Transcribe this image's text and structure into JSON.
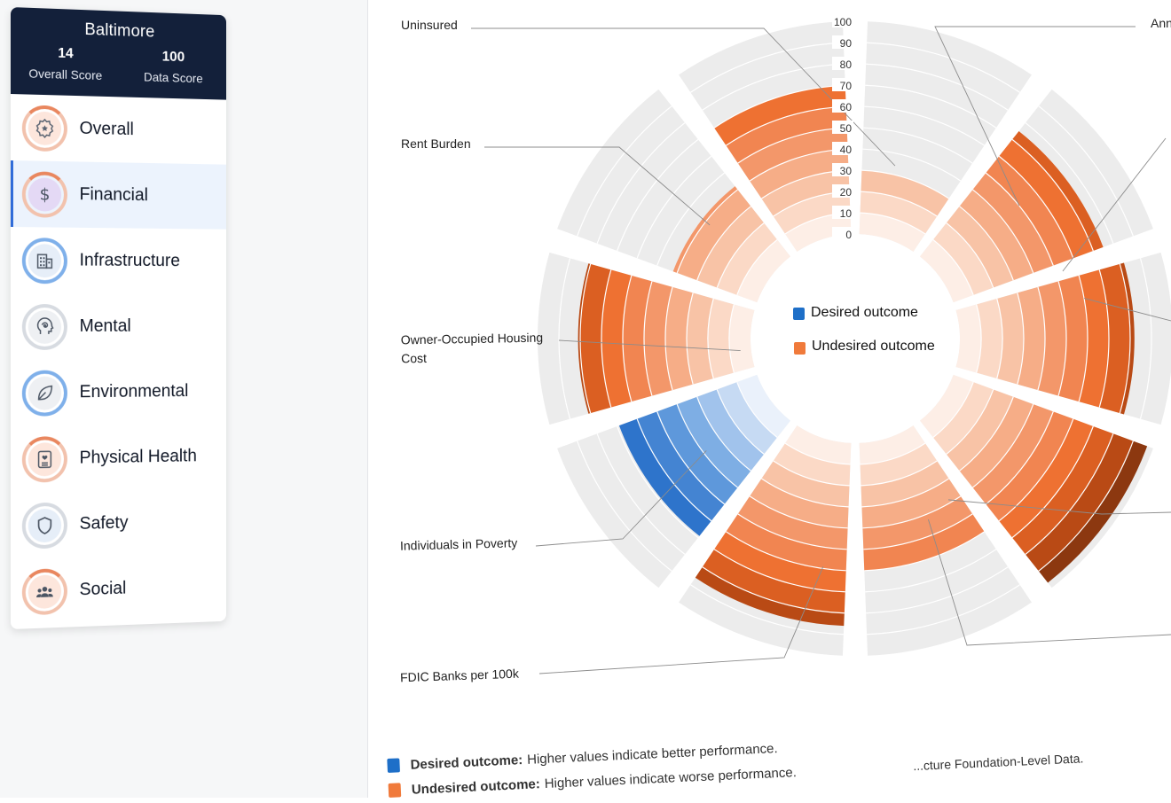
{
  "sidebar": {
    "city": "Baltimore",
    "overall_score": "14",
    "overall_score_label": "Overall Score",
    "data_score": "100",
    "data_score_label": "Data Score",
    "items": [
      {
        "label": "Overall",
        "icon": "star-gear-icon"
      },
      {
        "label": "Financial",
        "icon": "dollar-icon"
      },
      {
        "label": "Infrastructure",
        "icon": "building-icon"
      },
      {
        "label": "Mental",
        "icon": "head-spiral-icon"
      },
      {
        "label": "Environmental",
        "icon": "leaf-icon"
      },
      {
        "label": "Physical Health",
        "icon": "medical-id-icon"
      },
      {
        "label": "Safety",
        "icon": "shield-icon"
      },
      {
        "label": "Social",
        "icon": "people-icon"
      }
    ],
    "active_item": "Financial"
  },
  "chart_data": {
    "type": "radial bar",
    "rlim": [
      0,
      100
    ],
    "r_ticks": [
      "100",
      "90",
      "80",
      "70",
      "60",
      "50",
      "40",
      "30",
      "20",
      "10",
      "0"
    ],
    "categories": [
      {
        "label": "Uninsured",
        "value": 30,
        "outcome": "undesired"
      },
      {
        "label": "Ann",
        "value": 75,
        "outcome": "undesired"
      },
      {
        "label": "",
        "value": 82,
        "outcome": "undesired"
      },
      {
        "label": "",
        "value": 97,
        "outcome": "undesired"
      },
      {
        "label": "",
        "value": 60,
        "outcome": "undesired"
      },
      {
        "label": "",
        "value": 86,
        "outcome": "undesired"
      },
      {
        "label": "FDIC Banks per 100k",
        "value": 69,
        "outcome": "desired"
      },
      {
        "label": "Individuals in Poverty",
        "value": 81,
        "outcome": "undesired"
      },
      {
        "label": "Owner-Occupied Housing Cost",
        "value": 42,
        "outcome": "undesired"
      },
      {
        "label": "Rent Burden",
        "value": 70,
        "outcome": "undesired"
      }
    ],
    "legend": [
      {
        "label": "Desired outcome",
        "color": "#1e6fc8"
      },
      {
        "label": "Undesired outcome",
        "color": "#f07a3b"
      }
    ],
    "colors": {
      "track": "#ececec",
      "desired_ramp": [
        "#eaf1fb",
        "#c6daf3",
        "#a1c3ec",
        "#7eaee4",
        "#5e98db",
        "#4484d2",
        "#2e74cb",
        "#1e66c2",
        "#1558b5",
        "#0e4ea8"
      ],
      "undesired_ramp": [
        "#fdeee6",
        "#fbd9c6",
        "#f8c3a6",
        "#f6ad87",
        "#f3976a",
        "#f18551",
        "#ee7132",
        "#db5f22",
        "#b94a15",
        "#8c3810"
      ]
    }
  },
  "labels": {
    "uninsured": "Uninsured",
    "ann": "Ann",
    "rent_burden": "Rent Burden",
    "owner_occupied_1": "Owner-Occupied Housing",
    "owner_occupied_2": "Cost",
    "poverty": "Individuals in Poverty",
    "fdic": "FDIC Banks per 100k",
    "legend_desired": "Desired outcome",
    "legend_undesired": "Undesired outcome"
  },
  "footnote": {
    "desired_strong": "Desired outcome:",
    "desired_text": "Higher values indicate better performance.",
    "undesired_strong": "Undesired outcome:",
    "undesired_text": "Higher values indicate worse performance.",
    "extra_text": "...cture Foundation-Level Data."
  }
}
